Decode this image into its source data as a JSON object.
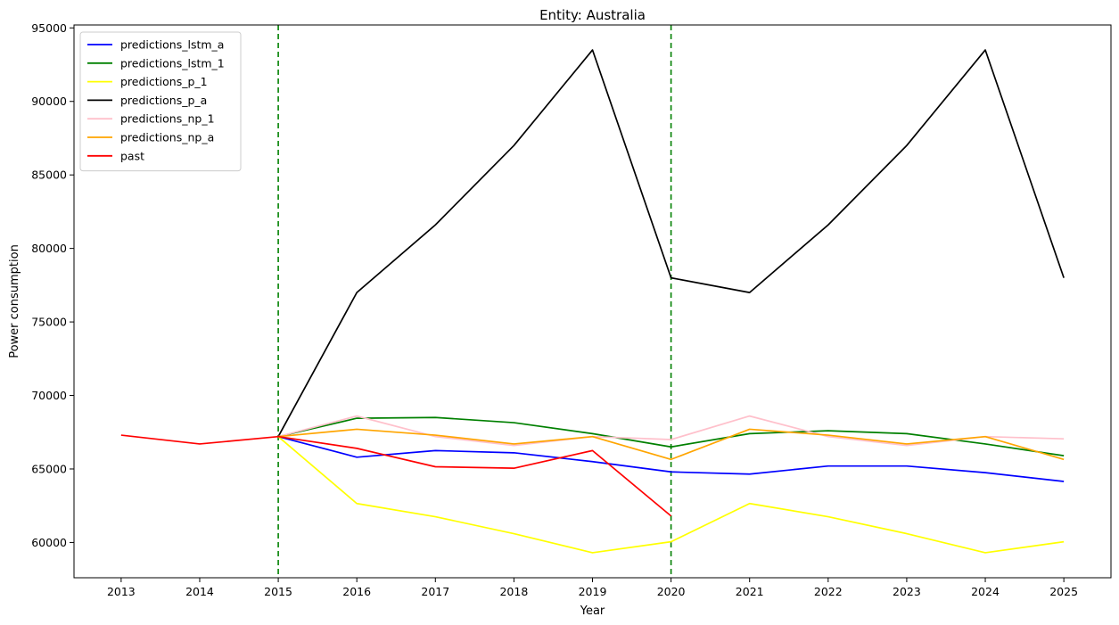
{
  "chart_data": {
    "type": "line",
    "title": "Entity: Australia",
    "xlabel": "Year",
    "ylabel": "Power consumption",
    "x": [
      2013,
      2014,
      2015,
      2016,
      2017,
      2018,
      2019,
      2020,
      2021,
      2022,
      2023,
      2024,
      2025
    ],
    "xlim": [
      2012.4,
      2025.6
    ],
    "ylim": [
      57600,
      95200
    ],
    "yticks": [
      60000,
      65000,
      70000,
      75000,
      80000,
      85000,
      90000,
      95000
    ],
    "vlines": [
      {
        "x": 2015,
        "color": "#008000",
        "style": "dashed"
      },
      {
        "x": 2020,
        "color": "#008000",
        "style": "dashed"
      }
    ],
    "legend_position": "top-left",
    "grid": false,
    "series": [
      {
        "name": "predictions_lstm_a",
        "color": "#0000ff",
        "x": [
          2015,
          2016,
          2017,
          2018,
          2019,
          2020,
          2021,
          2022,
          2023,
          2024,
          2025
        ],
        "y": [
          67200,
          65800,
          66250,
          66100,
          65500,
          64800,
          64650,
          65200,
          65200,
          64750,
          64150
        ]
      },
      {
        "name": "predictions_lstm_1",
        "color": "#008000",
        "x": [
          2015,
          2016,
          2017,
          2018,
          2019,
          2020,
          2021,
          2022,
          2023,
          2024,
          2025
        ],
        "y": [
          67200,
          68450,
          68500,
          68150,
          67400,
          66500,
          67400,
          67600,
          67400,
          66700,
          65900
        ]
      },
      {
        "name": "predictions_p_1",
        "color": "#ffff00",
        "x": [
          2015,
          2016,
          2017,
          2018,
          2019,
          2020,
          2021,
          2022,
          2023,
          2024,
          2025
        ],
        "y": [
          67200,
          62650,
          61750,
          60600,
          59300,
          60050,
          62650,
          61750,
          60600,
          59300,
          60050
        ]
      },
      {
        "name": "predictions_p_a",
        "color": "#000000",
        "x": [
          2015,
          2016,
          2017,
          2018,
          2019,
          2020,
          2021,
          2022,
          2023,
          2024,
          2025
        ],
        "y": [
          67200,
          77000,
          81600,
          87000,
          93500,
          78000,
          77000,
          81600,
          87000,
          93500,
          78000
        ]
      },
      {
        "name": "predictions_np_1",
        "color": "#ffc0cb",
        "x": [
          2015,
          2016,
          2017,
          2018,
          2019,
          2020,
          2021,
          2022,
          2023,
          2024,
          2025
        ],
        "y": [
          67200,
          68600,
          67200,
          66600,
          67200,
          67000,
          68600,
          67200,
          66600,
          67200,
          67050
        ]
      },
      {
        "name": "predictions_np_a",
        "color": "#ffa500",
        "x": [
          2015,
          2016,
          2017,
          2018,
          2019,
          2020,
          2021,
          2022,
          2023,
          2024,
          2025
        ],
        "y": [
          67200,
          67700,
          67300,
          66700,
          67200,
          65650,
          67700,
          67300,
          66700,
          67200,
          65650
        ]
      },
      {
        "name": "past",
        "color": "#ff0000",
        "x": [
          2013,
          2014,
          2015,
          2016,
          2017,
          2018,
          2019,
          2020
        ],
        "y": [
          67300,
          66700,
          67200,
          66400,
          65150,
          65050,
          66250,
          61800
        ]
      }
    ]
  }
}
